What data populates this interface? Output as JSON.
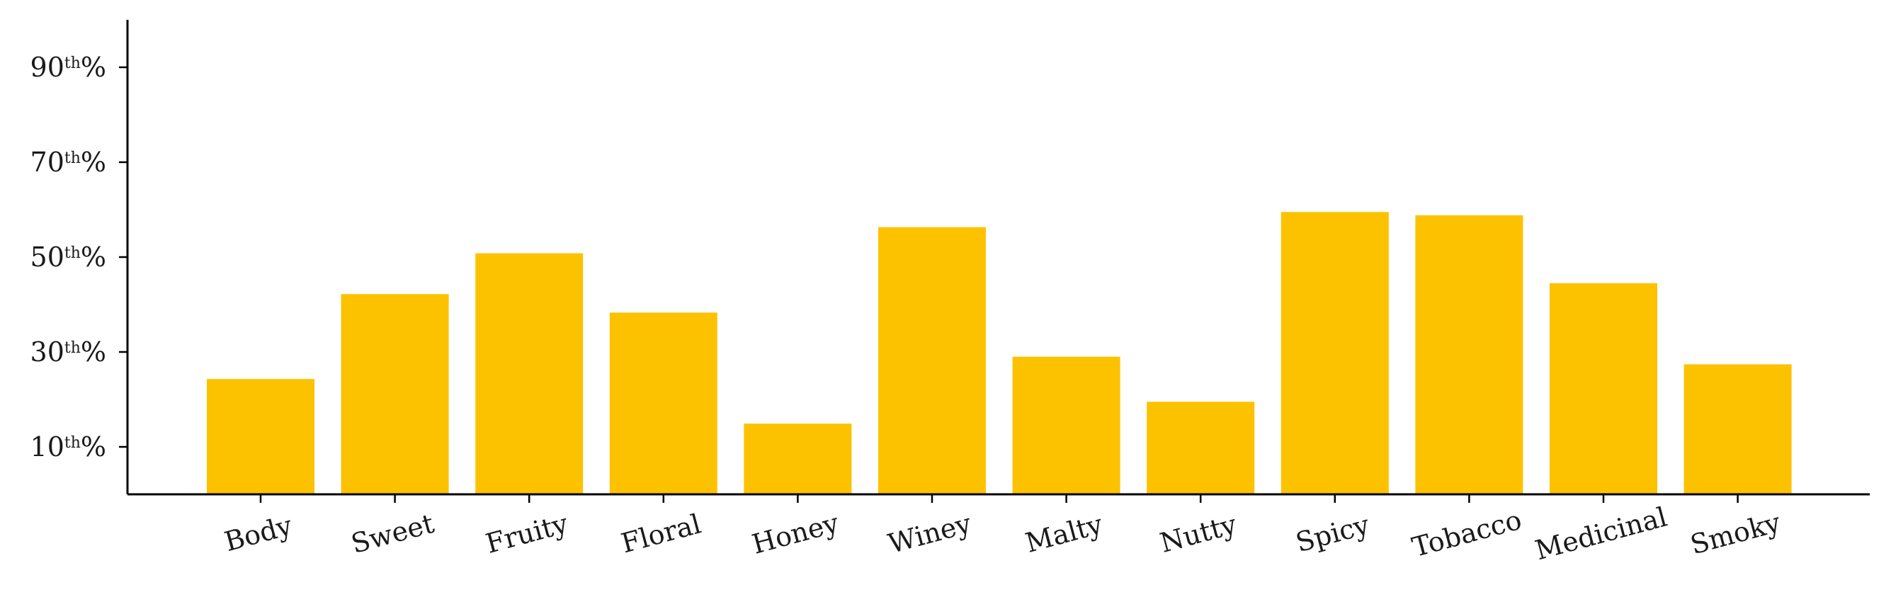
{
  "chart_data": {
    "type": "bar",
    "categories": [
      "Body",
      "Sweet",
      "Fruity",
      "Floral",
      "Honey",
      "Winey",
      "Malty",
      "Nutty",
      "Spicy",
      "Tobacco",
      "Medicinal",
      "Smoky"
    ],
    "values": [
      24.3,
      42.2,
      50.8,
      38.3,
      14.9,
      56.3,
      29.0,
      19.5,
      59.5,
      58.8,
      44.5,
      27.4
    ],
    "ylim": [
      0,
      100
    ],
    "yticks": [
      {
        "value": 10,
        "num": "10",
        "sup": "th",
        "suffix": "%"
      },
      {
        "value": 30,
        "num": "30",
        "sup": "th",
        "suffix": "%"
      },
      {
        "value": 50,
        "num": "50",
        "sup": "th",
        "suffix": "%"
      },
      {
        "value": 70,
        "num": "70",
        "sup": "th",
        "suffix": "%"
      },
      {
        "value": 90,
        "num": "90",
        "sup": "th",
        "suffix": "%"
      }
    ],
    "bar_color": "#FCC200",
    "axis_color": "#000000",
    "grid": false,
    "title": "",
    "xlabel": "",
    "ylabel": ""
  }
}
